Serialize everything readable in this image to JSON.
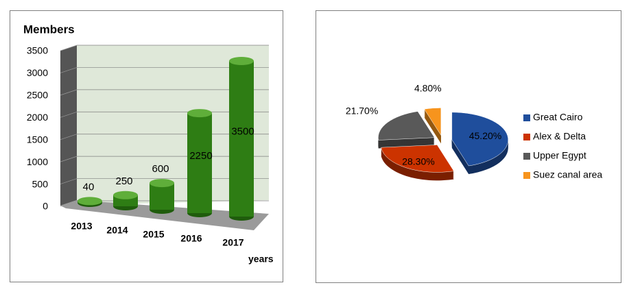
{
  "chart_data": [
    {
      "type": "bar",
      "title": "Members",
      "x_label": "years",
      "categories": [
        "2013",
        "2014",
        "2015",
        "2016",
        "2017"
      ],
      "values": [
        40,
        250,
        600,
        2250,
        3500
      ],
      "color": "#2e7d14",
      "ylim": [
        0,
        3500
      ],
      "yticks": [
        0,
        500,
        1000,
        1500,
        2000,
        2500,
        3000,
        3500
      ],
      "grid": true
    },
    {
      "type": "pie",
      "categories": [
        "Great Cairo",
        "Alex & Delta",
        "Upper Egypt",
        "Suez canal area"
      ],
      "values": [
        45.2,
        28.3,
        21.7,
        4.8
      ],
      "value_labels": [
        "45.20%",
        "28.30%",
        "21.70%",
        "4.80%"
      ],
      "colors": [
        "#1f4e9c",
        "#cc3300",
        "#595959",
        "#f7941d"
      ],
      "legend": "right"
    }
  ]
}
